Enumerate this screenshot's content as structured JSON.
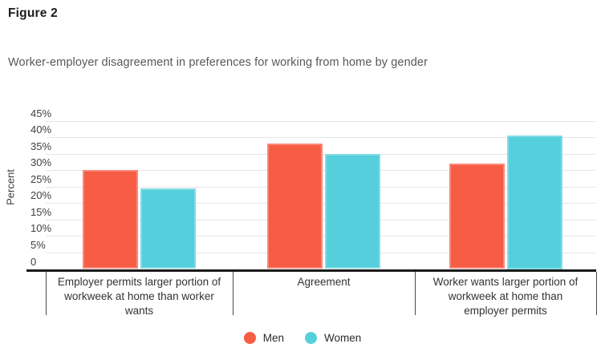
{
  "figure_label": "Figure 2",
  "subtitle": "Worker-employer disagreement in preferences for working from home by gender",
  "chart_data": {
    "type": "bar",
    "categories": [
      "Employer permits larger portion of workweek at home than worker wants",
      "Agreement",
      "Worker wants larger portion of workweek at home than employer permits"
    ],
    "series": [
      {
        "name": "Men",
        "color": "#f75c44",
        "values": [
          30,
          38,
          32
        ]
      },
      {
        "name": "Women",
        "color": "#55cfdc",
        "values": [
          24.5,
          35,
          40.5
        ]
      }
    ],
    "title": "Worker-employer disagreement in preferences for working from home by gender",
    "xlabel": "",
    "ylabel": "Percent",
    "ylim": [
      0,
      45
    ],
    "ytick_step": 5,
    "ytick_labels": [
      "0",
      "5%",
      "10%",
      "15%",
      "20%",
      "25%",
      "30%",
      "35%",
      "40%",
      "45%"
    ],
    "grid": true,
    "legend_position": "bottom"
  },
  "colors": {
    "men": "#f75c44",
    "women": "#55cfdc",
    "axis": "#1a1a1a",
    "gridline": "#e6e6e6",
    "text_dark": "#1c1c1c",
    "text_gray": "#585858"
  }
}
